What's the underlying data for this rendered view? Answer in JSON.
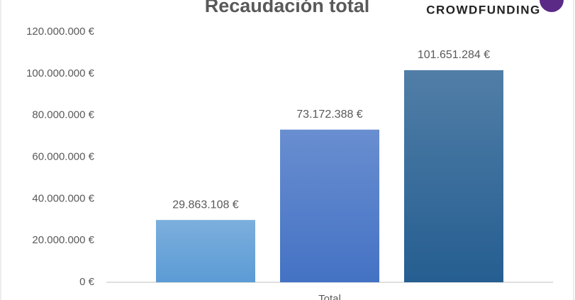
{
  "chart_data": {
    "type": "bar",
    "title": "Recaudación total",
    "logo_text": "CROWDFUNDING",
    "categories": [
      "Total"
    ],
    "series": [
      {
        "color": "#5b9bd5",
        "values": [
          29863108
        ],
        "value_labels": [
          "29.863.108 €"
        ]
      },
      {
        "color": "#4472c4",
        "values": [
          73172388
        ],
        "value_labels": [
          "73.172.388 €"
        ]
      },
      {
        "color": "#255e91",
        "values": [
          101651284
        ],
        "value_labels": [
          "101.651.284 €"
        ]
      }
    ],
    "ylim": [
      0,
      120000000
    ],
    "yticks": [
      {
        "value": 0,
        "label": "0 €"
      },
      {
        "value": 20000000,
        "label": "20.000.000 €"
      },
      {
        "value": 40000000,
        "label": "40.000.000 €"
      },
      {
        "value": 60000000,
        "label": "60.000.000 €"
      },
      {
        "value": 80000000,
        "label": "80.000.000 €"
      },
      {
        "value": 100000000,
        "label": "100.000.000 €"
      },
      {
        "value": 120000000,
        "label": "120.000.000 €"
      }
    ],
    "grid": false
  }
}
